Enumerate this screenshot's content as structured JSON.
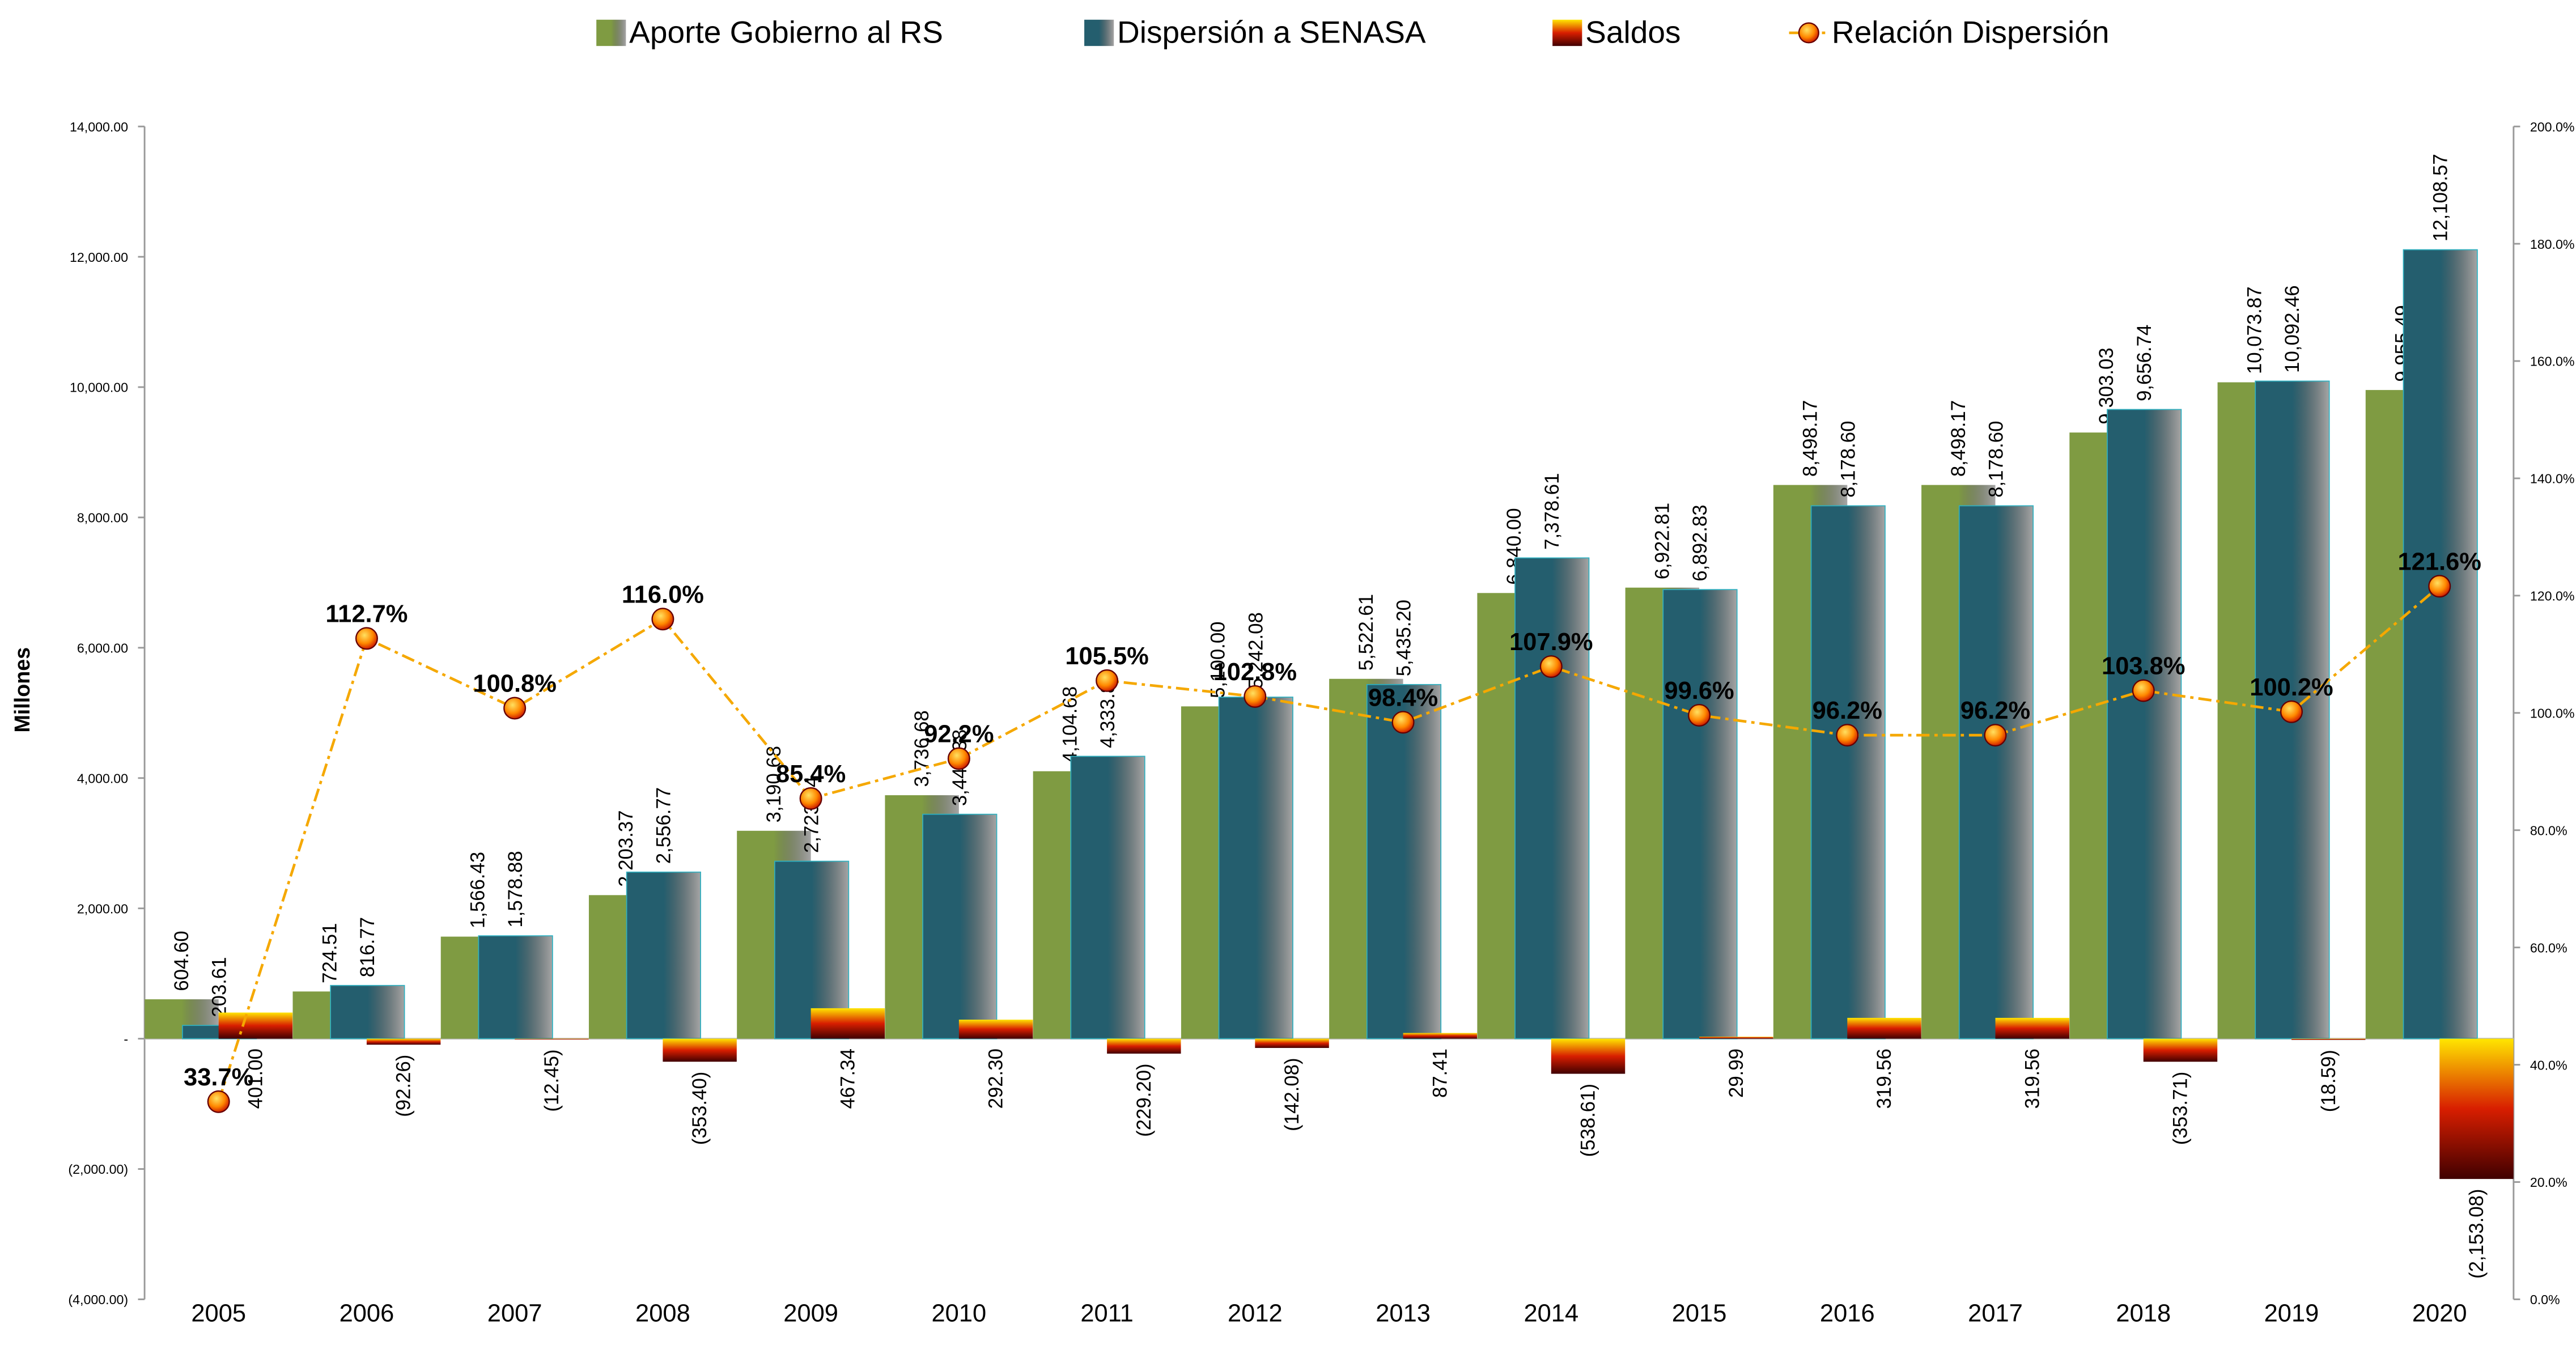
{
  "chart_data": {
    "type": "bar",
    "y_label": "Millones",
    "categories": [
      "2005",
      "2006",
      "2007",
      "2008",
      "2009",
      "2010",
      "2011",
      "2012",
      "2013",
      "2014",
      "2015",
      "2016",
      "2017",
      "2018",
      "2019",
      "2020"
    ],
    "ylim": [
      -4000,
      14000
    ],
    "yticks": [
      {
        "value": -4000,
        "label": "(4,000.00)"
      },
      {
        "value": -2000,
        "label": "(2,000.00)"
      },
      {
        "value": 0,
        "label": "-"
      },
      {
        "value": 2000,
        "label": "2,000.00"
      },
      {
        "value": 4000,
        "label": "4,000.00"
      },
      {
        "value": 6000,
        "label": "6,000.00"
      },
      {
        "value": 8000,
        "label": "8,000.00"
      },
      {
        "value": 10000,
        "label": "10,000.00"
      },
      {
        "value": 12000,
        "label": "12,000.00"
      },
      {
        "value": 14000,
        "label": "14,000.00"
      }
    ],
    "y2lim": [
      0,
      200
    ],
    "y2ticks": [
      {
        "value": 0,
        "label": "0.0%"
      },
      {
        "value": 20,
        "label": "20.0%"
      },
      {
        "value": 40,
        "label": "40.0%"
      },
      {
        "value": 60,
        "label": "60.0%"
      },
      {
        "value": 80,
        "label": "80.0%"
      },
      {
        "value": 100,
        "label": "100.0%"
      },
      {
        "value": 120,
        "label": "120.0%"
      },
      {
        "value": 140,
        "label": "140.0%"
      },
      {
        "value": 160,
        "label": "160.0%"
      },
      {
        "value": 180,
        "label": "180.0%"
      },
      {
        "value": 200,
        "label": "200.0%"
      }
    ],
    "series": [
      {
        "name": "Aporte Gobierno al RS",
        "color": "#7f9b42",
        "values": [
          604.6,
          724.51,
          1566.43,
          2203.37,
          3190.68,
          3736.68,
          4104.68,
          5100.0,
          5522.61,
          6840.0,
          6922.81,
          8498.17,
          8498.17,
          9303.03,
          10073.87,
          9955.49
        ],
        "value_labels": [
          "604.60",
          "724.51",
          "1,566.43",
          "2,203.37",
          "3,190.68",
          "3,736.68",
          "4,104.68",
          "5,100.00",
          "5,522.61",
          "6,840.00",
          "6,922.81",
          "8,498.17",
          "8,498.17",
          "9,303.03",
          "10,073.87",
          "9,955.49"
        ]
      },
      {
        "name": "Dispersión a SENASA",
        "color": "#245e6e",
        "values": [
          203.61,
          816.77,
          1578.88,
          2556.77,
          2723.34,
          3444.38,
          4333.88,
          5242.08,
          5435.2,
          7378.61,
          6892.83,
          8178.6,
          8178.6,
          9656.74,
          10092.46,
          12108.57
        ],
        "value_labels": [
          "203.61",
          "816.77",
          "1,578.88",
          "2,556.77",
          "2,723.34",
          "3,444.38",
          "4,333.88",
          "5,242.08",
          "5,435.20",
          "7,378.61",
          "6,892.83",
          "8,178.60",
          "8,178.60",
          "9,656.74",
          "10,092.46",
          "12,108.57"
        ]
      },
      {
        "name": "Saldos",
        "color": "#d81e00",
        "values": [
          401.0,
          -92.26,
          -12.45,
          -353.4,
          467.34,
          292.3,
          -229.2,
          -142.08,
          87.41,
          -538.61,
          29.99,
          319.56,
          319.56,
          -353.71,
          -18.59,
          -2153.08
        ],
        "value_labels": [
          "401.00",
          "(92.26)",
          "(12.45)",
          "(353.40)",
          "467.34",
          "292.30",
          "(229.20)",
          "(142.08)",
          "87.41",
          "(538.61)",
          "29.99",
          "319.56",
          "319.56",
          "(353.71)",
          "(18.59)",
          "(2,153.08)"
        ]
      },
      {
        "name": "Relación Dispersión",
        "color": "#f5a800",
        "axis": "y2",
        "type": "line",
        "values": [
          33.7,
          112.7,
          100.8,
          116.0,
          85.4,
          92.2,
          105.5,
          102.8,
          98.4,
          107.9,
          99.6,
          96.2,
          96.2,
          103.8,
          100.2,
          121.6
        ],
        "value_labels": [
          "33.7%",
          "112.7%",
          "100.8%",
          "116.0%",
          "85.4%",
          "92.2%",
          "105.5%",
          "102.8%",
          "98.4%",
          "107.9%",
          "99.6%",
          "96.2%",
          "96.2%",
          "103.8%",
          "100.2%",
          "121.6%"
        ]
      }
    ]
  }
}
